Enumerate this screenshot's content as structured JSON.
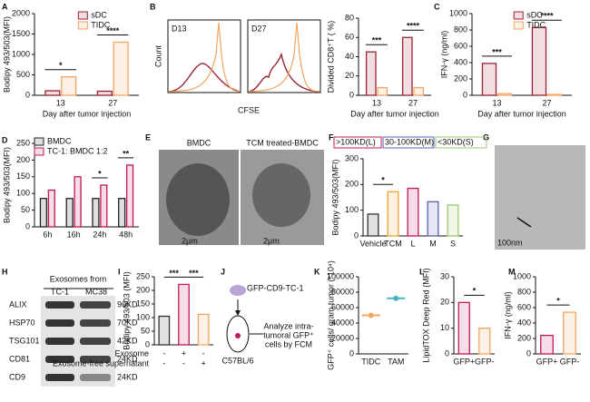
{
  "chart_data": [
    {
      "type": "bar",
      "categories": [
        "13",
        "27"
      ],
      "series": [
        {
          "name": "sDC",
          "color": "#9b2335",
          "values": [
            110,
            100
          ]
        },
        {
          "name": "TIDC",
          "color": "#f4a460",
          "values": [
            450,
            1300
          ]
        }
      ],
      "ylim": [
        0,
        2000
      ],
      "yticks": [
        0,
        500,
        1000,
        1500,
        2000
      ],
      "ylabel": "Bodipy 493/503(MFI)",
      "xlabel": "Day after tumor injection",
      "significance": [
        "*",
        "****"
      ]
    },
    {
      "type": "bar",
      "categories": [
        "13",
        "27"
      ],
      "series": [
        {
          "color": "#9b2335",
          "values": [
            45,
            60
          ]
        },
        {
          "color": "#f4a460",
          "values": [
            8,
            8
          ]
        }
      ],
      "ylim": [
        0,
        80
      ],
      "yticks": [
        0,
        20,
        40,
        60,
        80
      ],
      "ylabel": "Divided CD8⁺T ( %)",
      "xlabel": "Day after tumor injection",
      "significance": [
        "***",
        "****"
      ]
    },
    {
      "type": "bar",
      "categories": [
        "13",
        "27"
      ],
      "series": [
        {
          "name": "sDC",
          "color": "#9b2335",
          "values": [
            390,
            830
          ]
        },
        {
          "name": "TIDC",
          "color": "#f4a460",
          "values": [
            20,
            10
          ]
        }
      ],
      "ylim": [
        0,
        1000
      ],
      "yticks": [
        0,
        200,
        400,
        600,
        800,
        1000
      ],
      "ylabel": "IFN-γ (ng/ml)",
      "xlabel": "Day after tumor injection",
      "significance": [
        "***",
        "****"
      ]
    },
    {
      "type": "bar",
      "categories": [
        "6h",
        "16h",
        "24h",
        "48h"
      ],
      "series": [
        {
          "name": "BMDC",
          "color": "#222222",
          "values": [
            85,
            85,
            85,
            85
          ]
        },
        {
          "name": "TC-1: BMDC 1:2",
          "color": "#c2185b",
          "values": [
            110,
            150,
            125,
            185
          ]
        }
      ],
      "ylim": [
        0,
        250
      ],
      "yticks": [
        0,
        50,
        100,
        150,
        200,
        250
      ],
      "ylabel": "Bodipy 493/503(MFI)",
      "significance": [
        null,
        null,
        "*",
        "**"
      ]
    },
    {
      "type": "bar",
      "categories": [
        "Vehicle",
        "TCM",
        "L",
        "M",
        "S"
      ],
      "values": [
        85,
        172,
        185,
        133,
        120
      ],
      "colors": [
        "#333333",
        "#f0a030",
        "#c2185b",
        "#5a5fb0",
        "#9bc86a"
      ],
      "legend": [
        ">100KD(L)",
        "30-100KD(M)",
        "<30KD(S)"
      ],
      "ylim": [
        0,
        300
      ],
      "yticks": [
        0,
        100,
        200,
        300
      ],
      "ylabel": "Bodipy 493/503(MFI)",
      "significance": [
        "*"
      ]
    },
    {
      "type": "bar",
      "categories": [
        null,
        null,
        null
      ],
      "values": [
        105,
        222,
        112
      ],
      "colors": [
        "#333333",
        "#c2185b",
        "#f4a460"
      ],
      "rows": [
        {
          "name": "Exosome",
          "marks": [
            "-",
            "+",
            "-"
          ]
        },
        {
          "name": "Exosome-free supernatant",
          "marks": [
            "-",
            "-",
            "+"
          ]
        }
      ],
      "ylim": [
        0,
        250
      ],
      "yticks": [
        0,
        50,
        100,
        150,
        200,
        250
      ],
      "ylabel": "Bodipy 493/503 (MFI)",
      "significance": [
        "***",
        "***"
      ]
    },
    {
      "type": "dot",
      "categories": [
        "TIDC",
        "TAM"
      ],
      "values": [
        50000,
        72000
      ],
      "colors": [
        "#f4a460",
        "#4bb3c8"
      ],
      "ylim": [
        0,
        100000
      ],
      "yticks": [
        0,
        20000,
        40000,
        60000,
        80000,
        100000
      ],
      "ylabel": "GFP⁺ cells/ gram tumor (*10⁴)"
    },
    {
      "type": "bar",
      "categories": [
        "GFP+",
        "GFP-"
      ],
      "values": [
        20,
        10
      ],
      "colors": [
        "#c2185b",
        "#f4a460"
      ],
      "ylim": [
        0,
        30
      ],
      "yticks": [
        0,
        10,
        20,
        30
      ],
      "ylabel": "LipidTOX Deep Red (MFI)",
      "significance": [
        "*"
      ]
    },
    {
      "type": "bar",
      "categories": [
        "GFP+",
        "GFP-"
      ],
      "values": [
        240,
        540
      ],
      "colors": [
        "#c2185b",
        "#f4a460"
      ],
      "ylim": [
        0,
        1000
      ],
      "yticks": [
        0,
        200,
        400,
        600,
        800,
        1000
      ],
      "ylabel": "IFN-γ (ng/ml)",
      "significance": [
        "*"
      ]
    }
  ],
  "figure": {
    "letters": [
      "A",
      "B",
      "C",
      "D",
      "E",
      "F",
      "G",
      "H",
      "I",
      "J",
      "K",
      "L",
      "M"
    ],
    "B": {
      "plots": [
        "D13",
        "D27"
      ],
      "ylabel": "Count",
      "xlabel": "CFSE"
    },
    "E": {
      "images": [
        "BMDC",
        "TCM treated-BMDC"
      ],
      "scale": [
        "2μm",
        "2μm"
      ]
    },
    "G": {
      "scale": "100nm"
    },
    "H": {
      "header": "Exosomes from",
      "lanes": [
        "TC-1",
        "MC38"
      ],
      "proteins": [
        "ALIX",
        "HSP70",
        "TSG101",
        "CD81",
        "CD9"
      ],
      "sizes": [
        "90KD",
        "70KD",
        "42KD",
        "24KD",
        "24KD"
      ]
    },
    "J": {
      "cells": "GFP-CD9-TC-1",
      "mouse": "C57BL/6",
      "readout": [
        "Analyze intra-",
        "tumoral GFP⁺",
        "cells by FCM"
      ]
    }
  }
}
